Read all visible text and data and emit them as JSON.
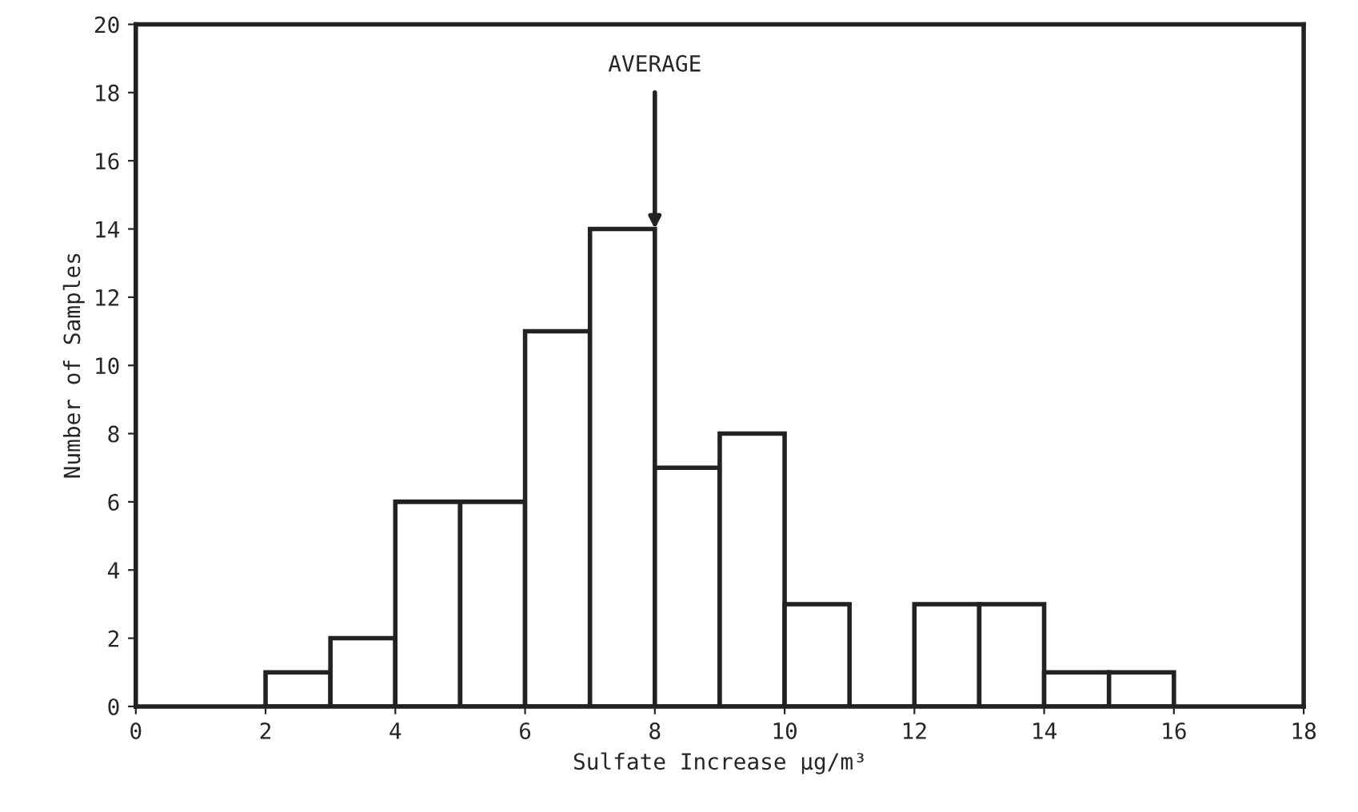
{
  "chart_data": {
    "type": "histogram",
    "xlabel": "Sulfate Increase μg/m³",
    "ylabel": "Number of Samples",
    "bins": [
      2,
      3,
      4,
      5,
      6,
      7,
      8,
      9,
      10,
      11,
      12,
      13,
      14,
      15,
      16
    ],
    "values": [
      1,
      2,
      6,
      6,
      11,
      14,
      7,
      8,
      3,
      0,
      3,
      3,
      1,
      1
    ],
    "color": "#ffffff",
    "xlim": [
      0,
      18
    ],
    "xticks": [
      0,
      2,
      4,
      6,
      8,
      10,
      12,
      14,
      16,
      18
    ],
    "ylim": [
      0,
      20
    ],
    "yticks": [
      0,
      2,
      4,
      6,
      8,
      10,
      12,
      14,
      16,
      18,
      20
    ],
    "grid": false,
    "annotations": [
      {
        "text": "AVERAGE",
        "x": 8,
        "y": 14
      }
    ]
  }
}
